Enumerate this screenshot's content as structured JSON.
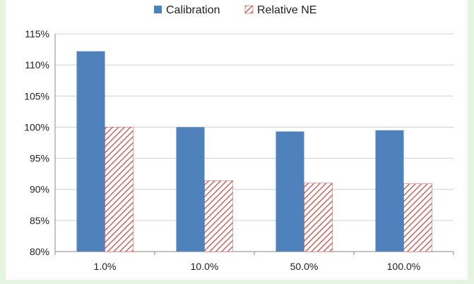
{
  "chart_data": {
    "type": "bar",
    "categories": [
      "1.0%",
      "10.0%",
      "50.0%",
      "100.0%"
    ],
    "series": [
      {
        "name": "Calibration",
        "values": [
          112.2,
          100.0,
          99.3,
          99.5
        ],
        "color": "#4f81bd",
        "pattern": "solid"
      },
      {
        "name": "Relative NE",
        "values": [
          100.0,
          91.4,
          91.0,
          90.9
        ],
        "color": "#c0504d",
        "pattern": "diagonal-hatch"
      }
    ],
    "ylim": [
      80,
      115
    ],
    "yticks": [
      "80%",
      "85%",
      "90%",
      "95%",
      "100%",
      "105%",
      "110%",
      "115%"
    ],
    "grid": true,
    "legend": "top-center"
  }
}
